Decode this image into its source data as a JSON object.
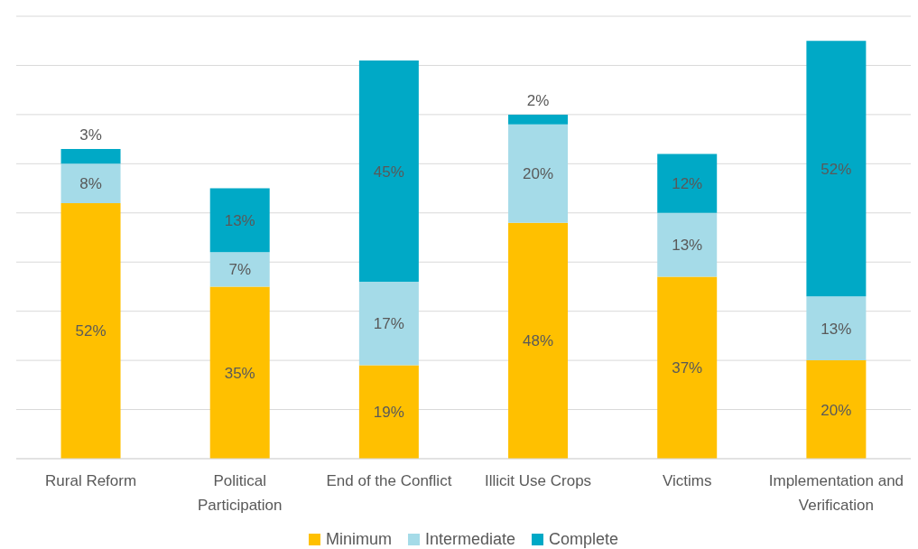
{
  "chart_data": {
    "type": "bar",
    "stacked": true,
    "categories": [
      "Rural Reform",
      "Political Participation",
      "End of the Conflict",
      "Illicit Use Crops",
      "Victims",
      "Implementation and Verification"
    ],
    "series": [
      {
        "name": "Minimum",
        "color": "#ffc000",
        "values": [
          52,
          35,
          19,
          48,
          37,
          20
        ],
        "value_labels": [
          "52%",
          "35%",
          "19%",
          "48%",
          "37%",
          "20%"
        ]
      },
      {
        "name": "Intermediate",
        "color": "#a5dbe8",
        "values": [
          8,
          7,
          17,
          20,
          13,
          13
        ],
        "value_labels": [
          "8%",
          "7%",
          "17%",
          "20%",
          "13%",
          "13%"
        ]
      },
      {
        "name": "Complete",
        "color": "#00a9c6",
        "values": [
          3,
          13,
          45,
          2,
          12,
          52
        ],
        "value_labels": [
          "3%",
          "13%",
          "45%",
          "2%",
          "12%",
          "52%"
        ]
      }
    ],
    "ylim": [
      0,
      90
    ],
    "tick_labels": "x",
    "grid": "y",
    "legend": "bottom"
  }
}
